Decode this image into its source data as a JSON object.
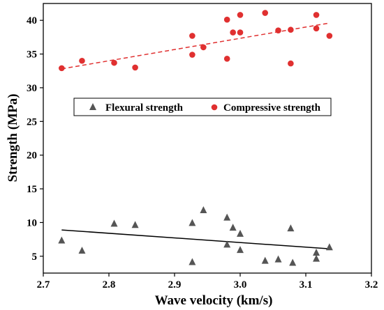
{
  "chart_data": {
    "type": "scatter",
    "xlabel": "Wave velocity (km/s)",
    "ylabel": "Strength (MPa)",
    "xlim": [
      2.7,
      3.2
    ],
    "ylim": [
      2.5,
      42.5
    ],
    "xticks": [
      2.7,
      2.8,
      2.9,
      3.0,
      3.1,
      3.2
    ],
    "xtick_labels": [
      "2.7",
      "2.8",
      "2.9",
      "3.0",
      "3.1",
      "3.2"
    ],
    "yticks": [
      5,
      10,
      15,
      20,
      25,
      30,
      35,
      40
    ],
    "ytick_labels": [
      "5",
      "10",
      "15",
      "20",
      "25",
      "30",
      "35",
      "40"
    ],
    "grid": false,
    "legend_position": "center",
    "series": [
      {
        "name": "Flexural strength",
        "marker": "triangle",
        "color": "#555555",
        "points": [
          [
            2.728,
            7.3
          ],
          [
            2.759,
            5.8
          ],
          [
            2.808,
            9.8
          ],
          [
            2.84,
            9.6
          ],
          [
            2.927,
            4.1
          ],
          [
            2.927,
            9.9
          ],
          [
            2.944,
            11.8
          ],
          [
            2.98,
            10.7
          ],
          [
            2.98,
            6.7
          ],
          [
            2.989,
            9.2
          ],
          [
            3.0,
            8.3
          ],
          [
            3.0,
            5.9
          ],
          [
            3.038,
            4.3
          ],
          [
            3.058,
            4.5
          ],
          [
            3.077,
            9.1
          ],
          [
            3.08,
            4.0
          ],
          [
            3.116,
            5.5
          ],
          [
            3.116,
            4.6
          ],
          [
            3.136,
            6.3
          ]
        ],
        "trend": {
          "style": "solid",
          "color": "#000000",
          "x": [
            2.728,
            3.136
          ],
          "y": [
            8.9,
            6.1
          ]
        }
      },
      {
        "name": "Compressive strength",
        "marker": "circle",
        "color": "#e03030",
        "points": [
          [
            2.728,
            32.9
          ],
          [
            2.759,
            34.0
          ],
          [
            2.808,
            33.7
          ],
          [
            2.84,
            33.0
          ],
          [
            2.927,
            34.9
          ],
          [
            2.927,
            37.7
          ],
          [
            2.944,
            36.0
          ],
          [
            2.98,
            40.1
          ],
          [
            2.98,
            34.3
          ],
          [
            2.989,
            38.2
          ],
          [
            3.0,
            38.2
          ],
          [
            3.0,
            40.8
          ],
          [
            3.038,
            41.1
          ],
          [
            3.058,
            38.5
          ],
          [
            3.077,
            38.6
          ],
          [
            3.077,
            33.6
          ],
          [
            3.116,
            40.8
          ],
          [
            3.116,
            38.8
          ],
          [
            3.136,
            37.7
          ]
        ],
        "trend": {
          "style": "dashed",
          "color": "#e03030",
          "x": [
            2.728,
            3.136
          ],
          "y": [
            32.8,
            39.6
          ]
        }
      }
    ]
  }
}
